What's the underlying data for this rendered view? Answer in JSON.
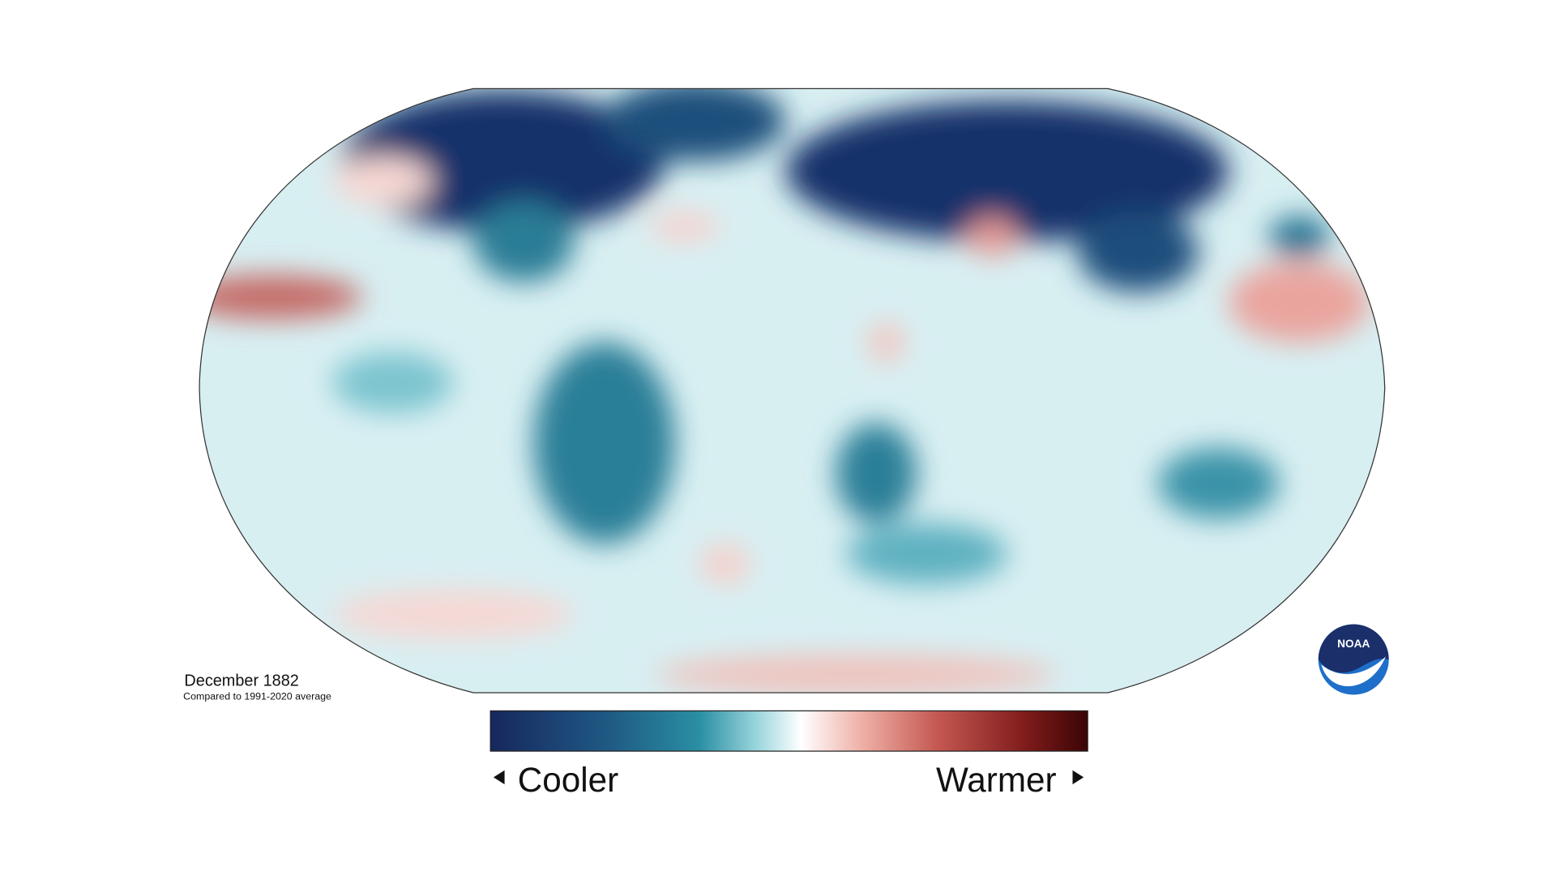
{
  "title": "December 1882",
  "subtitle": "Compared to 1991-2020 average",
  "legend": {
    "low": "Cooler",
    "high": "Warmer"
  },
  "logo": "NOAA"
}
